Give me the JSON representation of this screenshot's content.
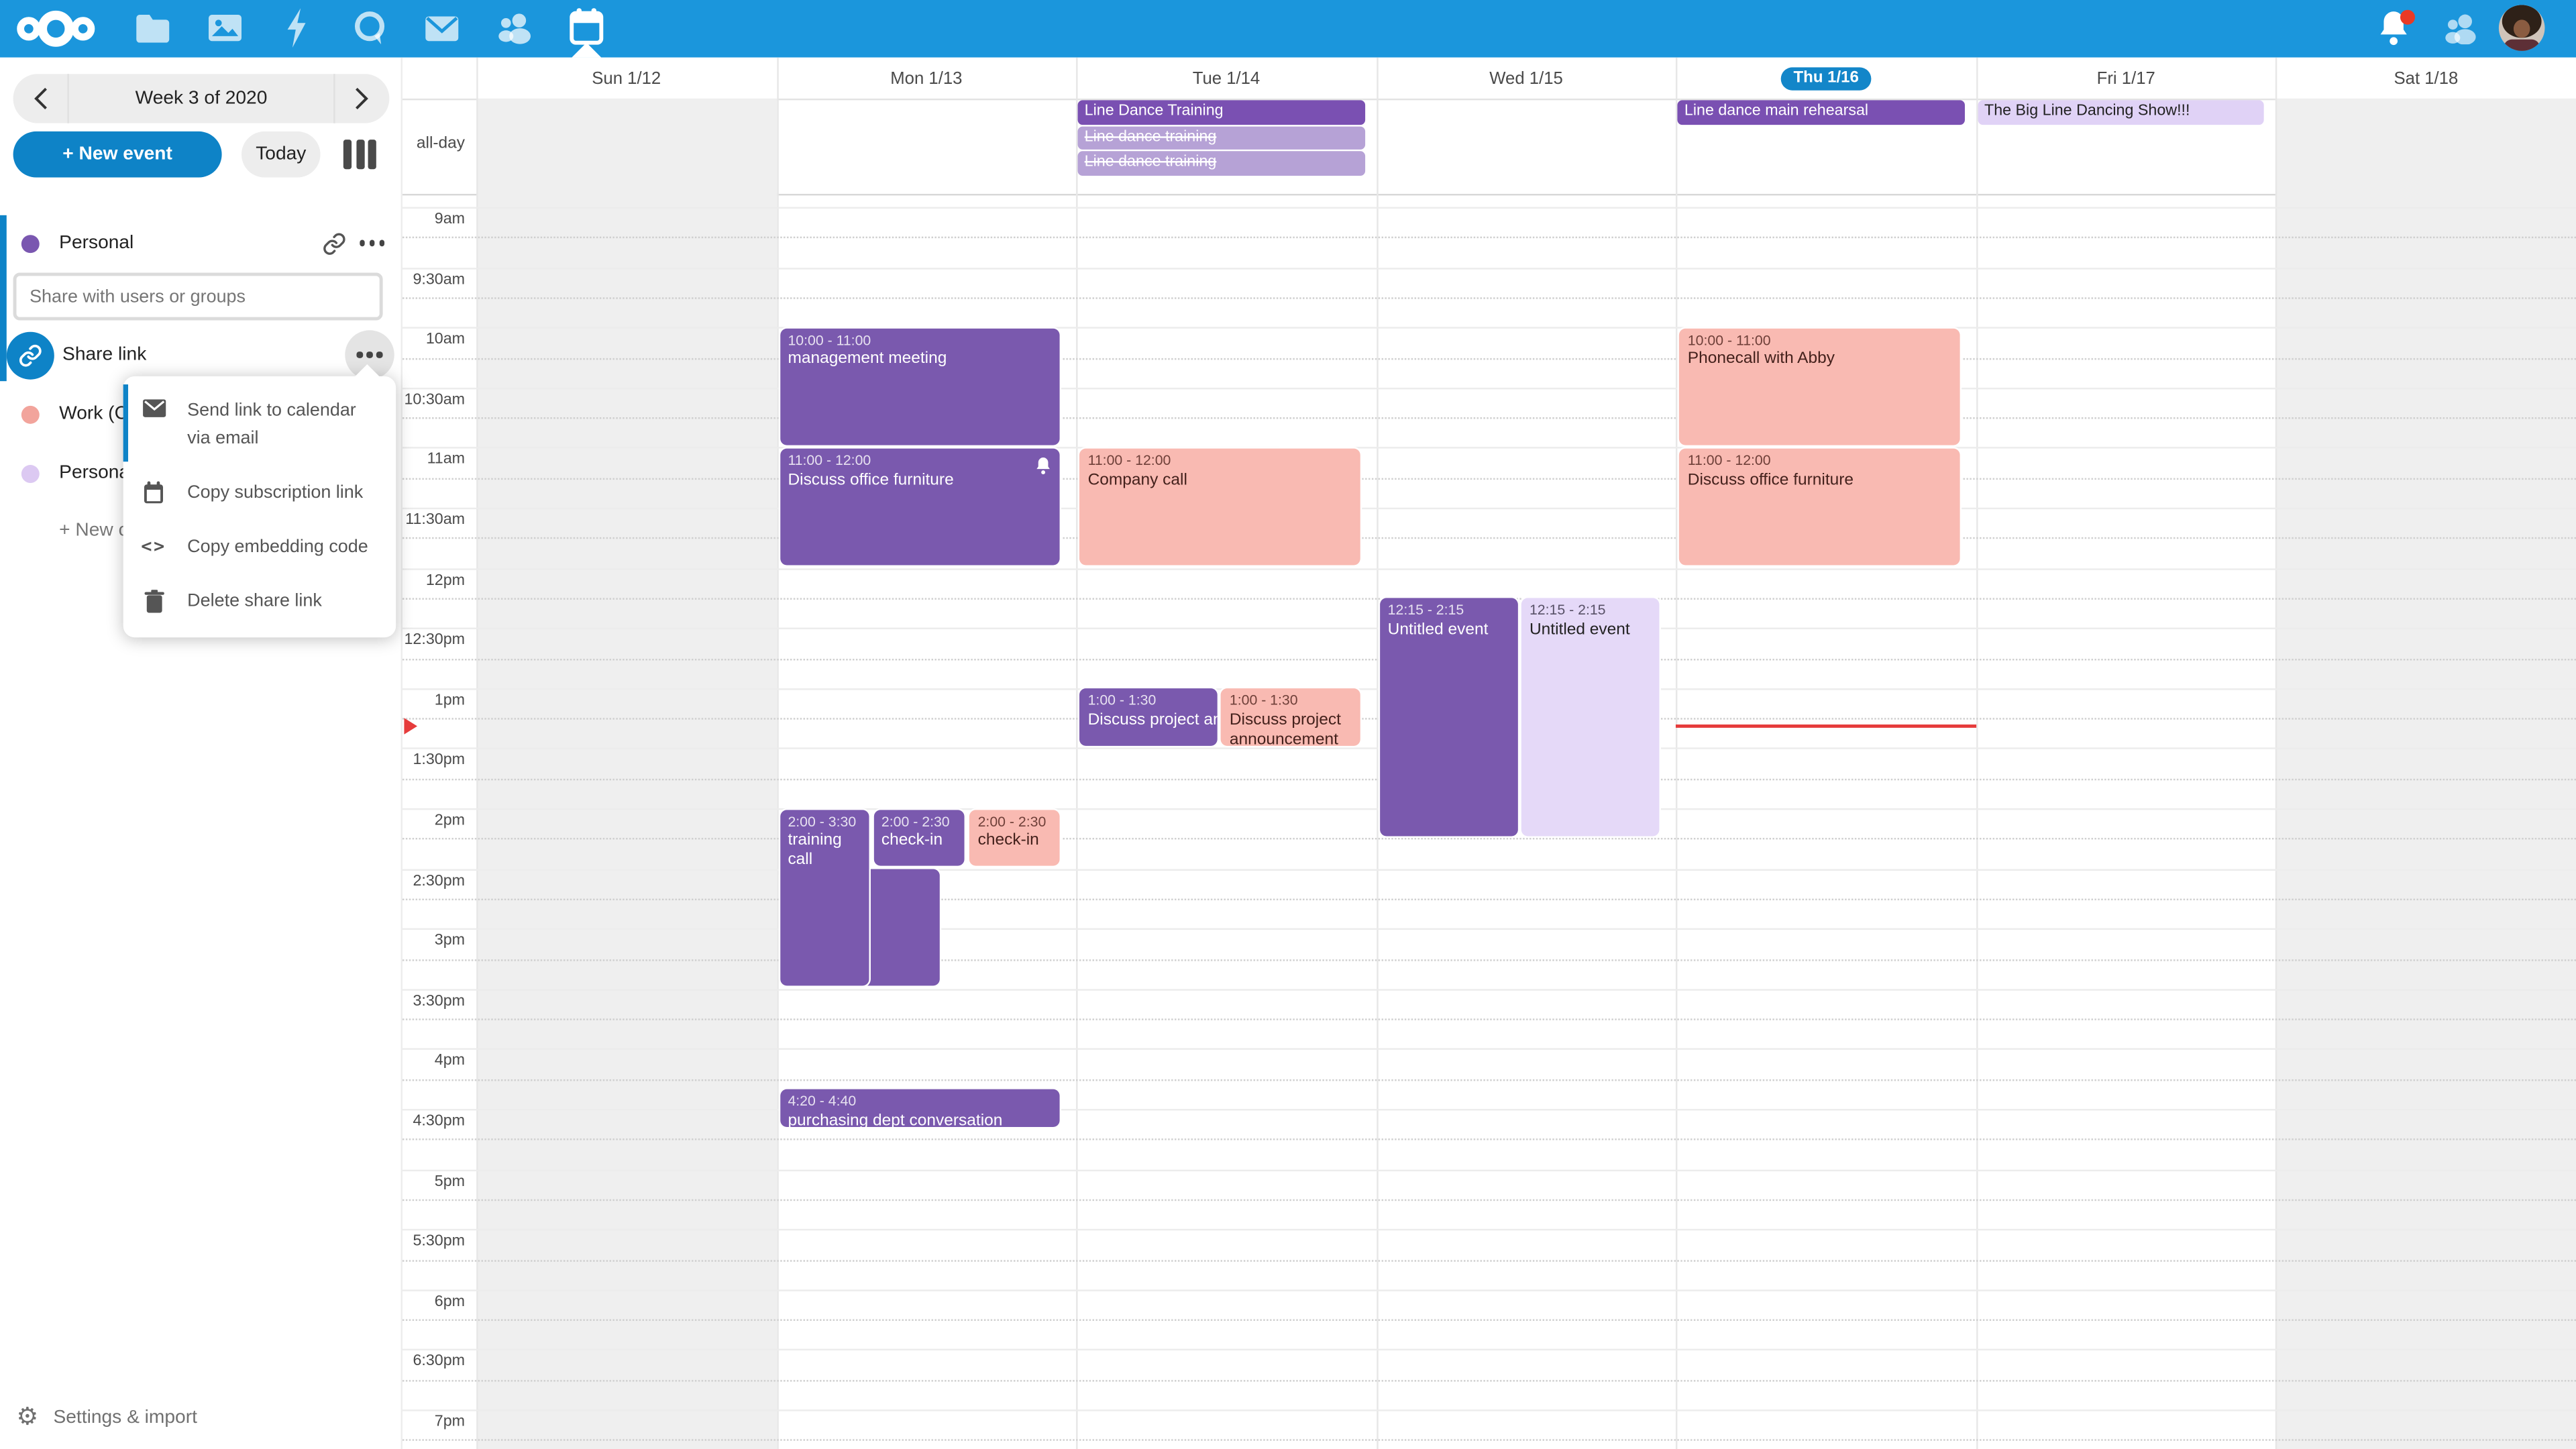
{
  "colors": {
    "navbar_blue": "#1b96dc",
    "accent_blue": "#0e83c7",
    "today_pill": "#1386c9",
    "event_purple": "#7a59ae",
    "event_purple_solid": "#7a50b2",
    "event_purple_muted": "#b6a2d6",
    "event_pink": "#f9bab2",
    "event_lavender": "#e5d9f8",
    "now_red": "#e63c3c",
    "personal_dot": "#7a57b0",
    "work_dot": "#f2a49c",
    "persona_dot": "#dcc9f2"
  },
  "sidebar": {
    "week_label": "Week 3 of 2020",
    "new_event_label": "+ New event",
    "today_label": "Today",
    "personal_calendar": "Personal",
    "share_placeholder": "Share with users or groups",
    "share_link_label": "Share link",
    "work_calendar": "Work (C",
    "second_personal_calendar": "Persona",
    "new_calendar_label": "+ New c",
    "settings_label": "Settings & import",
    "menu": {
      "items": [
        {
          "icon": "envelope-icon",
          "label": "Send link to calendar via email"
        },
        {
          "icon": "calendar-icon",
          "label": "Copy subscription link"
        },
        {
          "icon": "code-icon",
          "label": "Copy embedding code"
        },
        {
          "icon": "trash-icon",
          "label": "Delete share link"
        }
      ]
    }
  },
  "calendar": {
    "all_day_label": "all-day",
    "days": [
      {
        "label": "Sun 1/12",
        "weekend": true
      },
      {
        "label": "Mon 1/13"
      },
      {
        "label": "Tue 1/14"
      },
      {
        "label": "Wed 1/15"
      },
      {
        "label": "Thu 1/16",
        "today": true
      },
      {
        "label": "Fri 1/17"
      },
      {
        "label": "Sat 1/18",
        "weekend": true
      }
    ],
    "time_labels": [
      "9am",
      "9:30am",
      "10am",
      "10:30am",
      "11am",
      "11:30am",
      "12pm",
      "12:30pm",
      "1pm",
      "1:30pm",
      "2pm",
      "2:30pm",
      "3pm",
      "3:30pm",
      "4pm",
      "4:30pm",
      "5pm",
      "5:30pm",
      "6pm",
      "6:30pm",
      "7pm"
    ],
    "allday_events": [
      {
        "day": 2,
        "row": 0,
        "title": "Line Dance Training",
        "style": "purple-solid"
      },
      {
        "day": 2,
        "row": 1,
        "title": "Line dance training",
        "style": "purple-muted"
      },
      {
        "day": 2,
        "row": 2,
        "title": "Line dance training",
        "style": "purple-muted"
      },
      {
        "day": 4,
        "row": 0,
        "title": "Line dance main rehearsal",
        "style": "purple-solid"
      },
      {
        "day": 5,
        "row": 0,
        "title": "The Big Line Dancing Show!!!",
        "style": "lavender"
      }
    ],
    "events": [
      {
        "day": 1,
        "start": 10,
        "end": 11,
        "time": "10:00 - 11:00",
        "title": "management meeting",
        "style": "purple"
      },
      {
        "day": 1,
        "start": 11,
        "end": 12,
        "time": "11:00 - 12:00",
        "title": "Discuss office furniture",
        "style": "purple",
        "bell": true
      },
      {
        "day": 1,
        "start": 14,
        "end": 15.5,
        "time": "2:00 - 3:30",
        "title": "training call",
        "style": "purple",
        "frac": {
          "l": 0,
          "w": 0.325
        },
        "tail": {
          "l": 0,
          "w": 0.575,
          "from": 14.5
        }
      },
      {
        "day": 1,
        "start": 14,
        "end": 14.5,
        "time": "2:00 - 2:30",
        "title": "check-in",
        "style": "purple",
        "frac": {
          "l": 0.33,
          "w": 0.335
        }
      },
      {
        "day": 1,
        "start": 14,
        "end": 14.5,
        "time": "2:00 - 2:30",
        "title": "check-in",
        "style": "pink",
        "frac": {
          "l": 0.67,
          "w": 0.33
        }
      },
      {
        "day": 1,
        "start": 16.3333,
        "end": 16.6667,
        "time": "4:20 - 4:40",
        "title": "purchasing dept conversation",
        "style": "purple"
      },
      {
        "day": 2,
        "start": 11,
        "end": 12,
        "time": "11:00 - 12:00",
        "title": "Company call",
        "style": "pink"
      },
      {
        "day": 2,
        "start": 13,
        "end": 13.5,
        "time": "1:00 - 1:30",
        "title": "Discuss project announcement",
        "style": "purple",
        "frac": {
          "l": 0,
          "w": 0.5
        },
        "nowrap": true
      },
      {
        "day": 2,
        "start": 13,
        "end": 13.5,
        "time": "1:00 - 1:30",
        "title": "Discuss project announcement",
        "style": "pink",
        "frac": {
          "l": 0.5,
          "w": 0.5
        }
      },
      {
        "day": 3,
        "start": 12.25,
        "end": 14.25,
        "time": "12:15 - 2:15",
        "title": "Untitled event",
        "style": "purple",
        "frac": {
          "l": 0,
          "w": 0.5
        }
      },
      {
        "day": 3,
        "start": 12.25,
        "end": 14.25,
        "time": "12:15 - 2:15",
        "title": "Untitled event",
        "style": "lavender",
        "frac": {
          "l": 0.5,
          "w": 0.5
        }
      },
      {
        "day": 4,
        "start": 10,
        "end": 11,
        "time": "10:00 - 11:00",
        "title": "Phonecall with Abby",
        "style": "pink"
      },
      {
        "day": 4,
        "start": 11,
        "end": 12,
        "time": "11:00 - 12:00",
        "title": "Discuss office furniture",
        "style": "pink"
      }
    ],
    "now": {
      "day": 4,
      "time": 13.3
    }
  }
}
